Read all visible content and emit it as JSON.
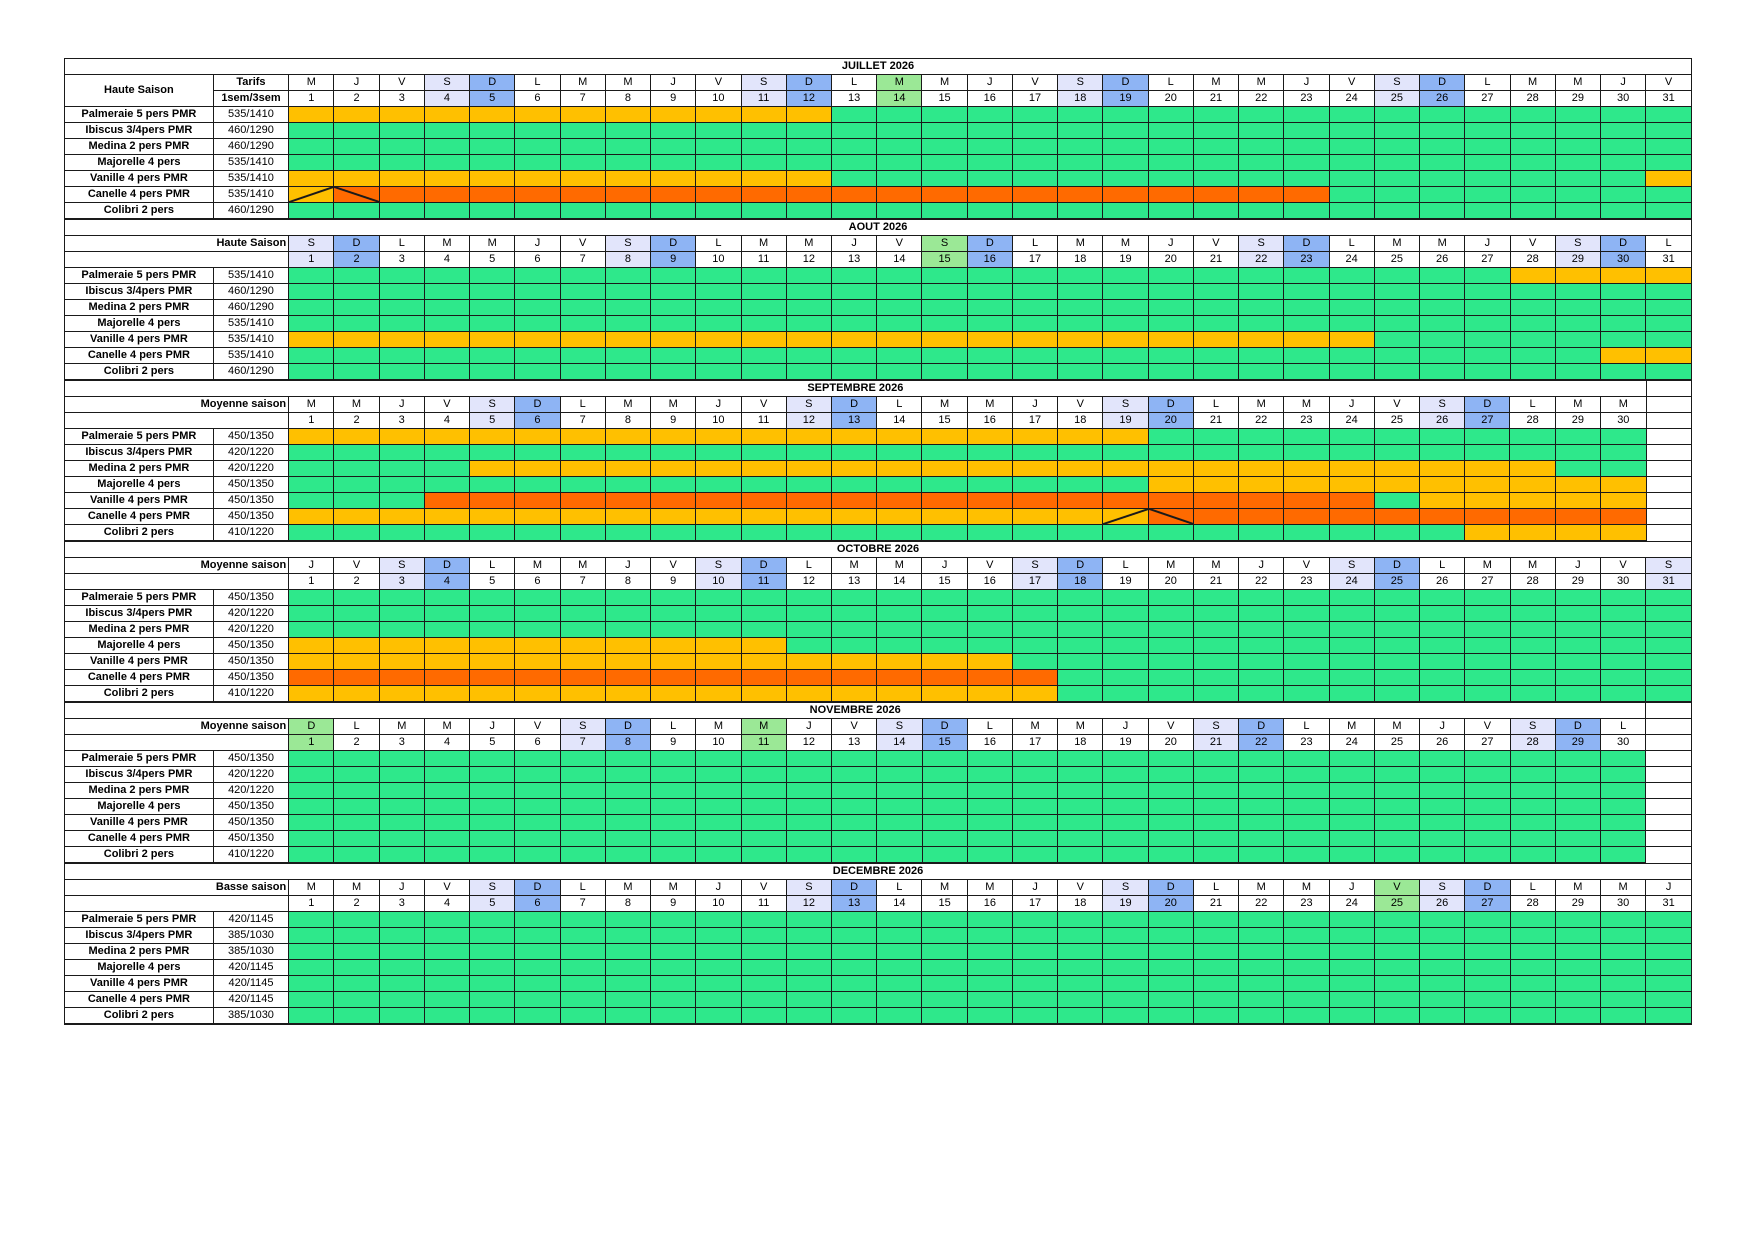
{
  "header": {
    "tarifs_label": "Tarifs",
    "tarifs_sub": "1sem/3sem"
  },
  "colors": {
    "free": "#2ee88b",
    "option": "#ffc000",
    "booked": "#ff6a00",
    "saturday": "#e2e5fb",
    "sunday": "#8eb4f4",
    "holiday": "#9be896"
  },
  "months": [
    {
      "title": "JUILLET 2026",
      "season": "Haute Saison",
      "days": 31,
      "first_dow": 2,
      "holidays": [
        14
      ],
      "tarif_header": true,
      "units": [
        {
          "name": "Palmeraie 5 pers PMR",
          "tarif": "535/1410",
          "spans": [
            [
              1,
              12,
              "f"
            ]
          ]
        },
        {
          "name": "Ibiscus 3/4pers PMR",
          "tarif": "460/1290",
          "spans": []
        },
        {
          "name": "Medina 2 pers PMR",
          "tarif": "460/1290",
          "spans": []
        },
        {
          "name": "Majorelle 4 pers",
          "tarif": "535/1410",
          "spans": []
        },
        {
          "name": "Vanille 4 pers PMR",
          "tarif": "535/1410",
          "spans": [
            [
              1,
              12,
              "f"
            ],
            [
              31,
              31,
              "f"
            ]
          ]
        },
        {
          "name": "Canelle 4 pers PMR",
          "tarif": "535/1410",
          "spans": [
            [
              1,
              1,
              "f"
            ],
            [
              2,
              23,
              "o"
            ]
          ],
          "marks": [
            [
              1,
              "sw"
            ],
            [
              2,
              "ne"
            ]
          ]
        },
        {
          "name": "Colibri 2 pers",
          "tarif": "460/1290",
          "spans": []
        }
      ]
    },
    {
      "title": "AOUT 2026",
      "season": "Haute Saison",
      "days": 31,
      "first_dow": 5,
      "holidays": [
        15
      ],
      "units": [
        {
          "name": "Palmeraie 5 pers PMR",
          "tarif": "535/1410",
          "spans": [
            [
              28,
              31,
              "f"
            ]
          ]
        },
        {
          "name": "Ibiscus 3/4pers PMR",
          "tarif": "460/1290",
          "spans": []
        },
        {
          "name": "Medina 2 pers PMR",
          "tarif": "460/1290",
          "spans": []
        },
        {
          "name": "Majorelle 4 pers",
          "tarif": "535/1410",
          "spans": []
        },
        {
          "name": "Vanille 4 pers PMR",
          "tarif": "535/1410",
          "spans": [
            [
              1,
              24,
              "f"
            ]
          ]
        },
        {
          "name": "Canelle 4 pers PMR",
          "tarif": "535/1410",
          "spans": [
            [
              30,
              31,
              "f"
            ]
          ]
        },
        {
          "name": "Colibri 2 pers",
          "tarif": "460/1290",
          "spans": []
        }
      ]
    },
    {
      "title": "SEPTEMBRE 2026",
      "season": "Moyenne saison",
      "days": 30,
      "first_dow": 1,
      "holidays": [],
      "units": [
        {
          "name": "Palmeraie 5 pers PMR",
          "tarif": "450/1350",
          "spans": [
            [
              1,
              19,
              "f"
            ]
          ]
        },
        {
          "name": "Ibiscus 3/4pers PMR",
          "tarif": "420/1220",
          "spans": []
        },
        {
          "name": "Medina 2 pers PMR",
          "tarif": "420/1220",
          "spans": [
            [
              5,
              28,
              "f"
            ]
          ]
        },
        {
          "name": "Majorelle 4 pers",
          "tarif": "450/1350",
          "spans": [
            [
              20,
              30,
              "f"
            ]
          ]
        },
        {
          "name": "Vanille 4 pers PMR",
          "tarif": "450/1350",
          "spans": [
            [
              4,
              24,
              "o"
            ],
            [
              26,
              30,
              "f"
            ]
          ]
        },
        {
          "name": "Canelle 4 pers PMR",
          "tarif": "450/1350",
          "spans": [
            [
              1,
              19,
              "f"
            ],
            [
              20,
              30,
              "o"
            ]
          ],
          "marks": [
            [
              19,
              "sw"
            ],
            [
              20,
              "ne"
            ]
          ]
        },
        {
          "name": "Colibri 2 pers",
          "tarif": "410/1220",
          "spans": [
            [
              27,
              30,
              "f"
            ]
          ]
        }
      ]
    },
    {
      "title": "OCTOBRE 2026",
      "season": "Moyenne saison",
      "days": 31,
      "first_dow": 3,
      "holidays": [],
      "units": [
        {
          "name": "Palmeraie 5 pers PMR",
          "tarif": "450/1350",
          "spans": []
        },
        {
          "name": "Ibiscus 3/4pers PMR",
          "tarif": "420/1220",
          "spans": []
        },
        {
          "name": "Medina 2 pers PMR",
          "tarif": "420/1220",
          "spans": []
        },
        {
          "name": "Majorelle 4 pers",
          "tarif": "450/1350",
          "spans": [
            [
              1,
              11,
              "f"
            ]
          ]
        },
        {
          "name": "Vanille 4 pers PMR",
          "tarif": "450/1350",
          "spans": [
            [
              1,
              16,
              "f"
            ]
          ]
        },
        {
          "name": "Canelle 4 pers PMR",
          "tarif": "450/1350",
          "spans": [
            [
              1,
              17,
              "o"
            ]
          ]
        },
        {
          "name": "Colibri 2 pers",
          "tarif": "410/1220",
          "spans": [
            [
              1,
              17,
              "f"
            ]
          ]
        }
      ]
    },
    {
      "title": "NOVEMBRE 2026",
      "season": "Moyenne saison",
      "days": 30,
      "first_dow": 6,
      "holidays": [
        1,
        11
      ],
      "units": [
        {
          "name": "Palmeraie 5 pers PMR",
          "tarif": "450/1350",
          "spans": []
        },
        {
          "name": "Ibiscus 3/4pers PMR",
          "tarif": "420/1220",
          "spans": []
        },
        {
          "name": "Medina 2 pers PMR",
          "tarif": "420/1220",
          "spans": []
        },
        {
          "name": "Majorelle 4 pers",
          "tarif": "450/1350",
          "spans": []
        },
        {
          "name": "Vanille 4 pers PMR",
          "tarif": "450/1350",
          "spans": []
        },
        {
          "name": "Canelle 4 pers PMR",
          "tarif": "450/1350",
          "spans": []
        },
        {
          "name": "Colibri 2 pers",
          "tarif": "410/1220",
          "spans": []
        }
      ]
    },
    {
      "title": "DECEMBRE 2026",
      "season": "Basse saison",
      "days": 31,
      "first_dow": 1,
      "holidays": [
        25
      ],
      "units": [
        {
          "name": "Palmeraie 5 pers PMR",
          "tarif": "420/1145",
          "spans": []
        },
        {
          "name": "Ibiscus 3/4pers PMR",
          "tarif": "385/1030",
          "spans": []
        },
        {
          "name": "Medina 2 pers PMR",
          "tarif": "385/1030",
          "spans": []
        },
        {
          "name": "Majorelle 4 pers",
          "tarif": "420/1145",
          "spans": []
        },
        {
          "name": "Vanille 4 pers PMR",
          "tarif": "420/1145",
          "spans": []
        },
        {
          "name": "Canelle 4 pers PMR",
          "tarif": "420/1145",
          "spans": []
        },
        {
          "name": "Colibri 2 pers",
          "tarif": "385/1030",
          "spans": []
        }
      ]
    }
  ],
  "weekday_letters": [
    "L",
    "M",
    "M",
    "J",
    "V",
    "S",
    "D"
  ]
}
